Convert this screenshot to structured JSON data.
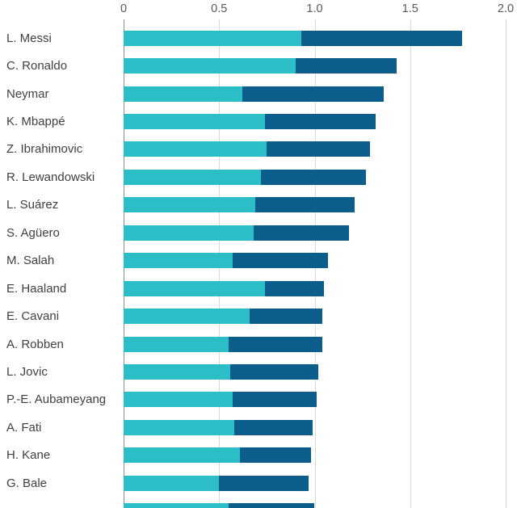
{
  "chart_data": {
    "type": "bar",
    "orientation": "horizontal",
    "stacked": true,
    "title": "",
    "xlabel": "",
    "ylabel": "",
    "xlim": [
      0,
      2.0
    ],
    "x_ticks": [
      "0",
      "0.5",
      "1.0",
      "1.5",
      "2.0"
    ],
    "grid": "vertical",
    "legend": "none",
    "categories": [
      "L. Messi",
      "C. Ronaldo",
      "Neymar",
      "K. Mbappé",
      "Z. Ibrahimovic",
      "R. Lewandowski",
      "L. Suárez",
      "S. Agüero",
      "M. Salah",
      "E. Haaland",
      "E. Cavani",
      "A. Robben",
      "L. Jovic",
      "P.-E. Aubameyang",
      "A. Fati",
      "H. Kane",
      "G. Bale"
    ],
    "series": [
      {
        "name": "teal-segment",
        "color": "#2bbec6",
        "values": [
          0.93,
          0.9,
          0.62,
          0.74,
          0.75,
          0.72,
          0.69,
          0.68,
          0.57,
          0.74,
          0.66,
          0.55,
          0.56,
          0.57,
          0.58,
          0.61,
          0.5
        ]
      },
      {
        "name": "dark-blue-segment",
        "color": "#0b5d8b",
        "values": [
          0.84,
          0.53,
          0.74,
          0.58,
          0.54,
          0.55,
          0.52,
          0.5,
          0.5,
          0.31,
          0.38,
          0.49,
          0.46,
          0.44,
          0.41,
          0.37,
          0.47
        ]
      }
    ],
    "totals": [
      1.77,
      1.43,
      1.36,
      1.32,
      1.29,
      1.27,
      1.21,
      1.18,
      1.07,
      1.05,
      1.04,
      1.04,
      1.02,
      1.01,
      0.99,
      0.98,
      0.97
    ],
    "partial_bottom_row": {
      "label": "",
      "values": [
        0.55,
        0.45
      ]
    }
  },
  "colors": {
    "background": "#ffffff",
    "gridline": "#dadada",
    "zero_axis_line": "#8c8c8c",
    "axis_label_text": "#595959",
    "category_label_text": "#404040"
  }
}
